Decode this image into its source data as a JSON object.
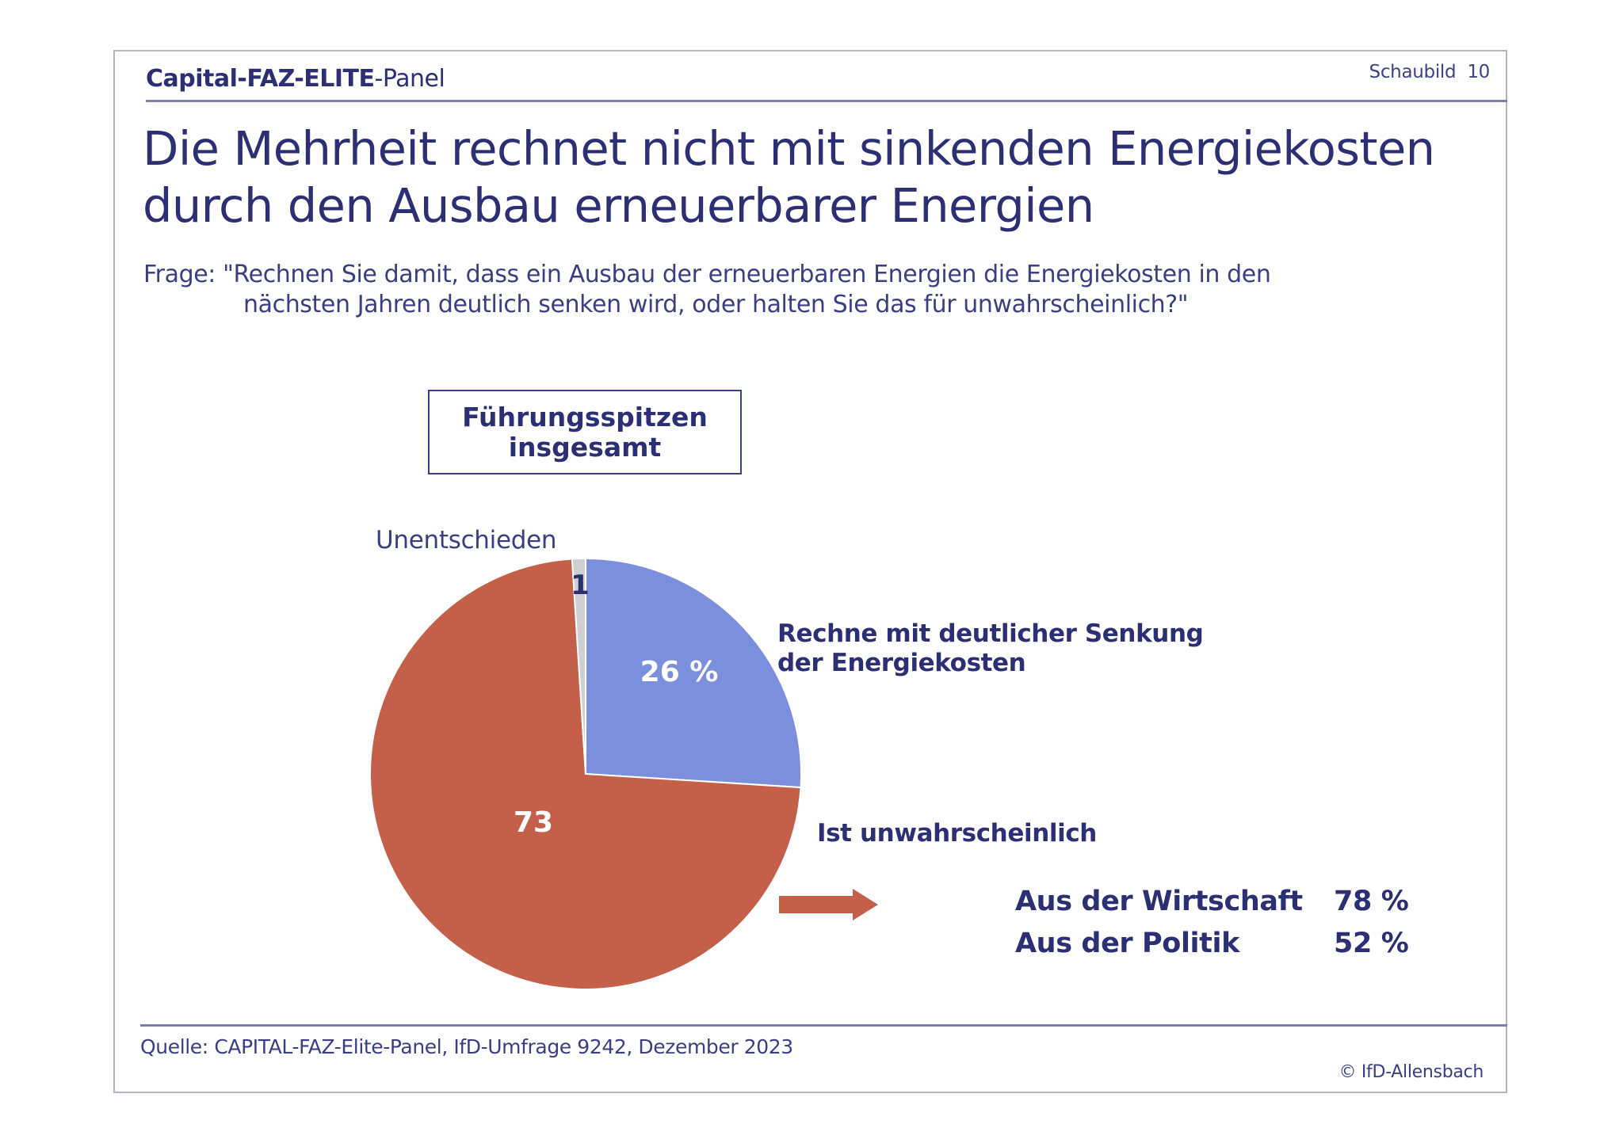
{
  "header": {
    "brand_bold": "Capital-FAZ-ELITE",
    "brand_regular": "-Panel",
    "figure_label": "Schaubild  10"
  },
  "title": {
    "line1": "Die Mehrheit rechnet nicht mit sinkenden Energiekosten",
    "line2": "durch den Ausbau erneuerbarer Energien"
  },
  "question": {
    "line1": "Frage: \"Rechnen Sie damit, dass ein Ausbau der erneuerbaren Energien die Energiekosten in den",
    "line2": "nächsten Jahren deutlich senken wird, oder halten Sie das für unwahrscheinlich?\""
  },
  "group_box": {
    "line1": "Führungsspitzen",
    "line2": "insgesamt"
  },
  "colors": {
    "navy": "#2b2f74",
    "blue_slice": "#7b8fdd",
    "red_slice": "#c45f4a",
    "gray_slice": "#cfcfd3"
  },
  "chart_data": {
    "type": "pie",
    "title": "Führungsspitzen insgesamt",
    "unit": "%",
    "start_angle": "12 o'clock",
    "slices": [
      {
        "name": "Rechne mit deutlicher Senkung der Energiekosten",
        "value": 26,
        "value_label": "26 %",
        "color": "#7b8fdd",
        "label_lines": [
          "Rechne mit deutlicher Senkung",
          "der Energiekosten"
        ]
      },
      {
        "name": "Ist unwahrscheinlich",
        "value": 73,
        "value_label": "73",
        "color": "#c45f4a",
        "label_lines": [
          "Ist unwahrscheinlich"
        ]
      },
      {
        "name": "Unentschieden",
        "value": 1,
        "value_label": "1",
        "color": "#cfcfd3",
        "label_lines": [
          "Unentschieden"
        ]
      }
    ],
    "breakdown": {
      "refers_to": "Ist unwahrscheinlich",
      "rows": [
        {
          "label": "Aus der Wirtschaft",
          "value": 78,
          "value_label": "78 %"
        },
        {
          "label": "Aus der Politik",
          "value": 52,
          "value_label": "52 %"
        }
      ]
    }
  },
  "footer": {
    "source": "Quelle: CAPITAL-FAZ-Elite-Panel, IfD-Umfrage 9242, Dezember 2023",
    "copyright": "© IfD-Allensbach"
  }
}
